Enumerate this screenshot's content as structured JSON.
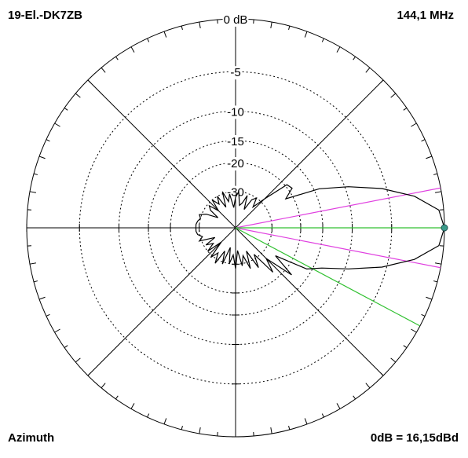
{
  "chart_data": {
    "type": "polar",
    "title": "19-El.-DK7ZB",
    "subtitle": "144,1 MHz",
    "plane_label": "Azimuth",
    "reference_label": "0dB = 16,15dBd",
    "rscale": "arrl-log",
    "rlim": [
      -50,
      0
    ],
    "rticks": [
      {
        "value": 0,
        "label": "0 dB"
      },
      -5,
      -10,
      -15,
      -20,
      -30
    ],
    "grid": true,
    "series": [
      {
        "color": "#000000",
        "x": [
          0,
          5,
          10,
          15,
          20,
          25,
          30,
          35,
          40,
          45,
          50,
          55,
          60,
          65,
          70,
          75,
          80,
          85,
          90,
          95,
          100,
          105,
          110,
          115,
          120,
          125,
          130,
          135,
          140,
          145,
          150,
          155,
          160,
          165,
          170,
          175,
          180,
          185,
          190,
          195,
          200,
          205,
          210,
          215,
          220,
          225,
          230,
          235,
          240,
          245,
          250,
          255,
          260,
          265,
          270,
          275,
          280,
          285,
          290,
          295,
          300,
          305,
          310,
          315,
          320,
          325,
          330,
          335,
          340,
          345,
          350,
          355,
          360
        ],
        "values": [
          0,
          -0.4,
          -2.4,
          -5.5,
          -9.5,
          -14,
          -22,
          -19,
          -19.5,
          -28,
          -35,
          -30,
          -32,
          -40,
          -31,
          -36,
          -38,
          -30,
          -33,
          -40,
          -31,
          -35,
          -29,
          -38,
          -30,
          -34,
          -30,
          -37,
          -31,
          -33,
          -40,
          -32,
          -29,
          -30,
          -29,
          -28.5,
          -28.5,
          -28.5,
          -29,
          -31,
          -29,
          -38,
          -31,
          -35,
          -30,
          -40,
          -29,
          -33,
          -28,
          -36,
          -29,
          -40,
          -30,
          -35,
          -28,
          -38,
          -29,
          -34,
          -27,
          -36,
          -26,
          -32,
          -22,
          -27,
          -18,
          -25,
          -16,
          -13.5,
          -9.5,
          -5.5,
          -2.4,
          -0.4,
          0
        ]
      }
    ],
    "markers": [
      {
        "angle": 11,
        "color": "#e040e0"
      },
      {
        "angle": 349,
        "color": "#e040e0"
      },
      {
        "angle": 0,
        "color": "#30c030"
      },
      {
        "angle": 332,
        "color": "#30c030"
      }
    ]
  }
}
